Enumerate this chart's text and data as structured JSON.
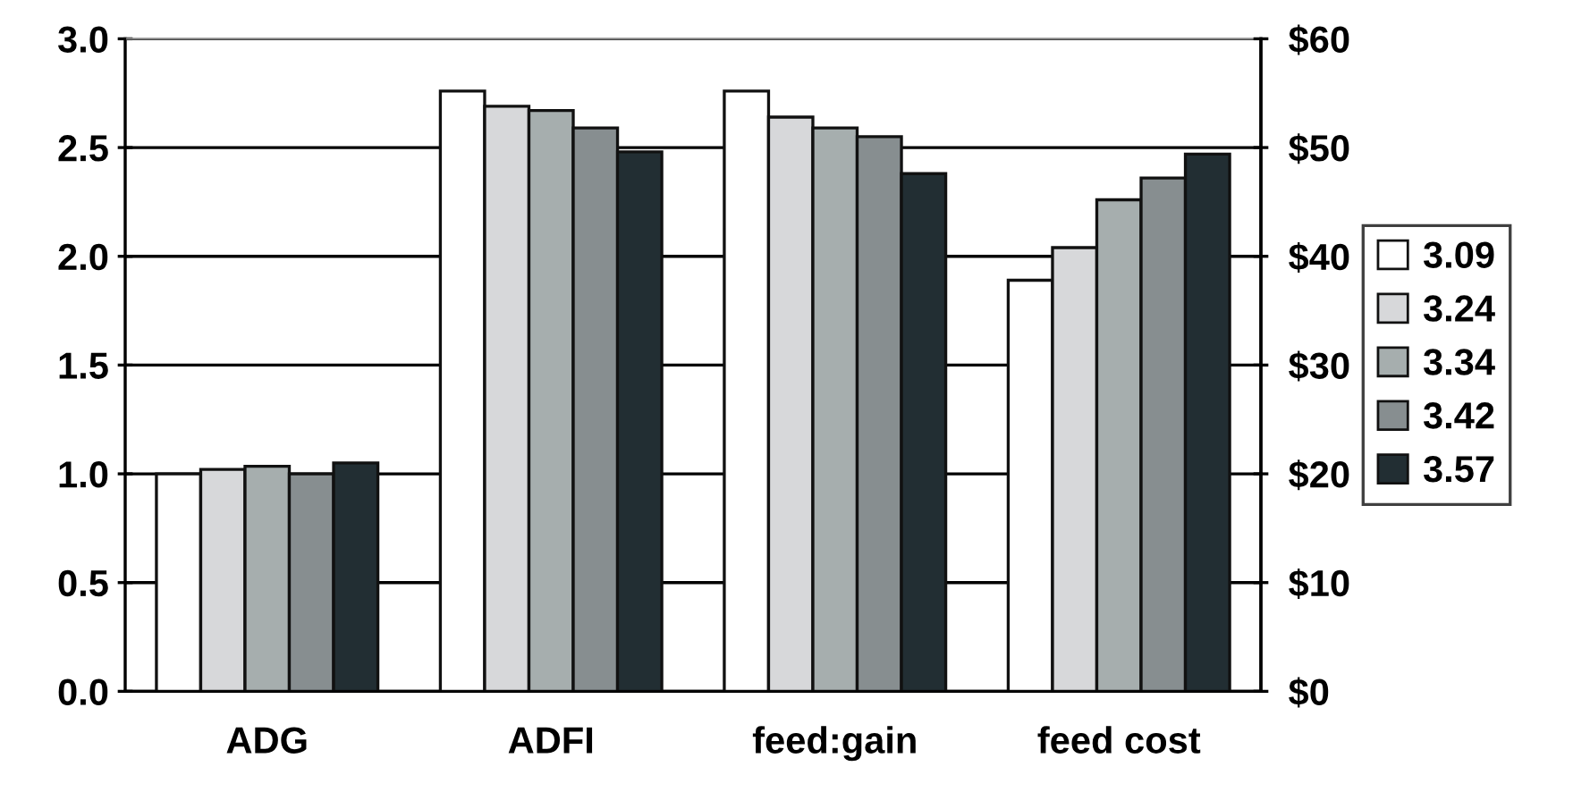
{
  "chart_data": {
    "type": "bar",
    "categories": [
      "ADG",
      "ADFI",
      "feed:gain",
      "feed cost"
    ],
    "series": [
      {
        "name": "3.09",
        "color": "#ffffff",
        "values": [
          1.0,
          2.76,
          2.76,
          1.89
        ]
      },
      {
        "name": "3.24",
        "color": "#d7d8da",
        "values": [
          1.02,
          2.69,
          2.64,
          2.04
        ]
      },
      {
        "name": "3.34",
        "color": "#a6aeae",
        "values": [
          1.035,
          2.67,
          2.59,
          2.26
        ]
      },
      {
        "name": "3.42",
        "color": "#878e90",
        "values": [
          1.0,
          2.59,
          2.55,
          2.36
        ]
      },
      {
        "name": "3.57",
        "color": "#222e33",
        "values": [
          1.05,
          2.48,
          2.38,
          2.47
        ]
      }
    ],
    "ylim": [
      0,
      3.0
    ],
    "yticks": [
      {
        "value": 0,
        "label": "0.0"
      },
      {
        "value": 0.5,
        "label": "0.5"
      },
      {
        "value": 1.0,
        "label": "1.0"
      },
      {
        "value": 1.5,
        "label": "1.5"
      },
      {
        "value": 2.0,
        "label": "2.0"
      },
      {
        "value": 2.5,
        "label": "2.5"
      },
      {
        "value": 3.0,
        "label": "3.0"
      }
    ],
    "y2lim": [
      0,
      60
    ],
    "y2ticks": [
      {
        "value": 0,
        "label": "$0"
      },
      {
        "value": 10,
        "label": "$10"
      },
      {
        "value": 20,
        "label": "$20"
      },
      {
        "value": 30,
        "label": "$30"
      },
      {
        "value": 40,
        "label": "$40"
      },
      {
        "value": 50,
        "label": "$50"
      },
      {
        "value": 60,
        "label": "$60"
      }
    ],
    "grid": "y",
    "legend": "right"
  }
}
